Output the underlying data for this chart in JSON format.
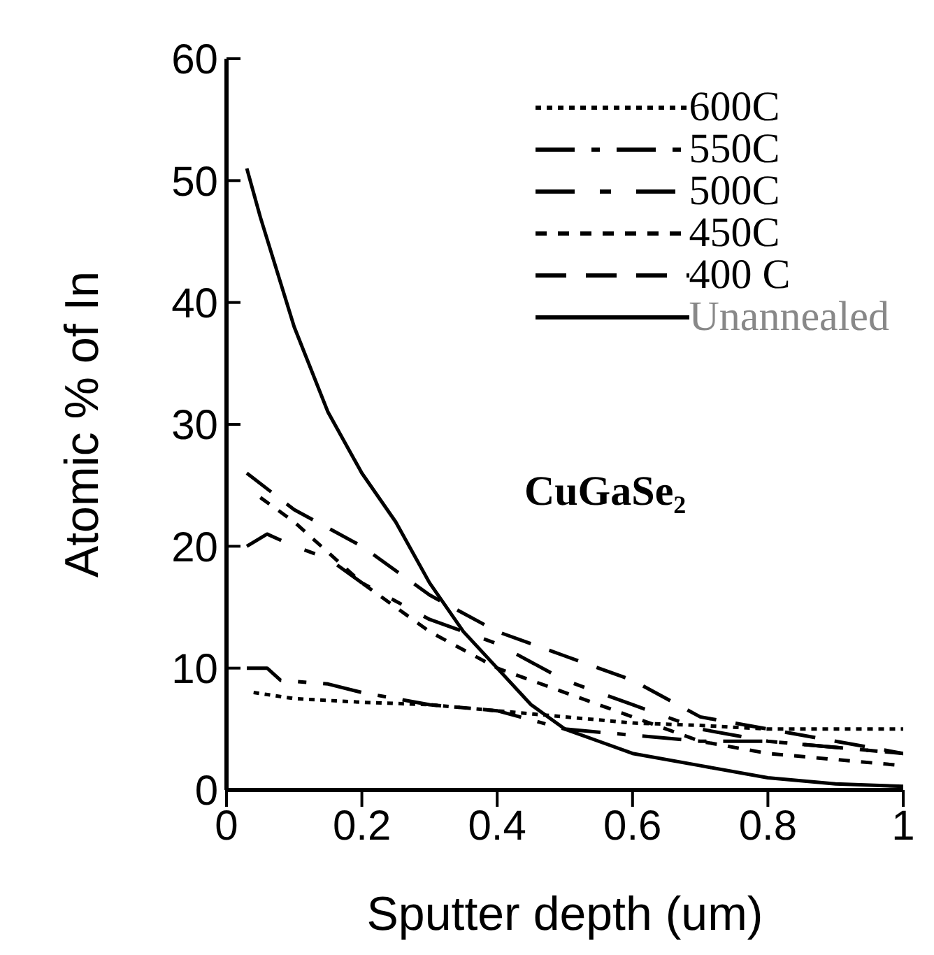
{
  "chart_data": {
    "type": "line",
    "xlabel": "Sputter depth (um)",
    "ylabel": "Atomic % of In",
    "annotations": [
      "CuGaSe₂"
    ],
    "xlim": [
      0,
      1
    ],
    "xticks": [
      0,
      0.2,
      0.4,
      0.6,
      0.8,
      1
    ],
    "ylim": [
      0,
      60
    ],
    "yticks": [
      0,
      10,
      20,
      30,
      40,
      50,
      60
    ],
    "legend": "top right",
    "series": [
      {
        "name": "600C",
        "color": "#000000",
        "line_style": "dotted",
        "x": [
          0.04,
          0.1,
          0.2,
          0.3,
          0.4,
          0.5,
          0.6,
          0.7,
          0.8,
          0.9,
          1
        ],
        "values": [
          8,
          7.5,
          7.2,
          7,
          6.5,
          6,
          5.5,
          5.3,
          5,
          5,
          5
        ]
      },
      {
        "name": "550C",
        "color": "#000000",
        "line_style": "dashed",
        "x": [
          0.03,
          0.06,
          0.08,
          0.15,
          0.2,
          0.3,
          0.4,
          0.5,
          0.6,
          0.7,
          0.8,
          0.9,
          1
        ],
        "values": [
          10,
          10,
          9,
          8.7,
          8,
          7,
          6.5,
          5,
          4.5,
          4,
          4,
          3.5,
          3
        ]
      },
      {
        "name": "500C",
        "color": "#000000",
        "line_style": "dashed",
        "x": [
          0.03,
          0.06,
          0.1,
          0.15,
          0.2,
          0.3,
          0.4,
          0.5,
          0.6,
          0.7,
          0.8,
          0.9,
          1
        ],
        "values": [
          20,
          21,
          20,
          19,
          17,
          14,
          12,
          9,
          7,
          5,
          4,
          3.5,
          3
        ]
      },
      {
        "name": "450C",
        "color": "#000000",
        "line_style": "dashed",
        "x": [
          0.05,
          0.1,
          0.2,
          0.3,
          0.4,
          0.5,
          0.6,
          0.7,
          0.8,
          0.9,
          1
        ],
        "values": [
          24,
          22,
          17,
          13,
          10,
          8,
          6,
          4,
          3,
          2.5,
          2
        ]
      },
      {
        "name": "400 C",
        "color": "#000000",
        "line_style": "dashed",
        "x": [
          0.03,
          0.1,
          0.2,
          0.3,
          0.4,
          0.5,
          0.6,
          0.7,
          0.8,
          0.9,
          1
        ],
        "values": [
          26,
          23,
          20,
          16,
          13,
          11,
          9,
          6,
          5,
          4,
          3
        ]
      },
      {
        "name": "Unannealed",
        "color": "#000000",
        "line_style": "solid",
        "x": [
          0.03,
          0.05,
          0.1,
          0.15,
          0.2,
          0.25,
          0.3,
          0.35,
          0.4,
          0.45,
          0.5,
          0.55,
          0.6,
          0.7,
          0.8,
          0.9,
          1
        ],
        "values": [
          51,
          47,
          38,
          31,
          26,
          22,
          17,
          13,
          10,
          7,
          5,
          4,
          3,
          2,
          1,
          0.5,
          0.3
        ]
      }
    ]
  }
}
